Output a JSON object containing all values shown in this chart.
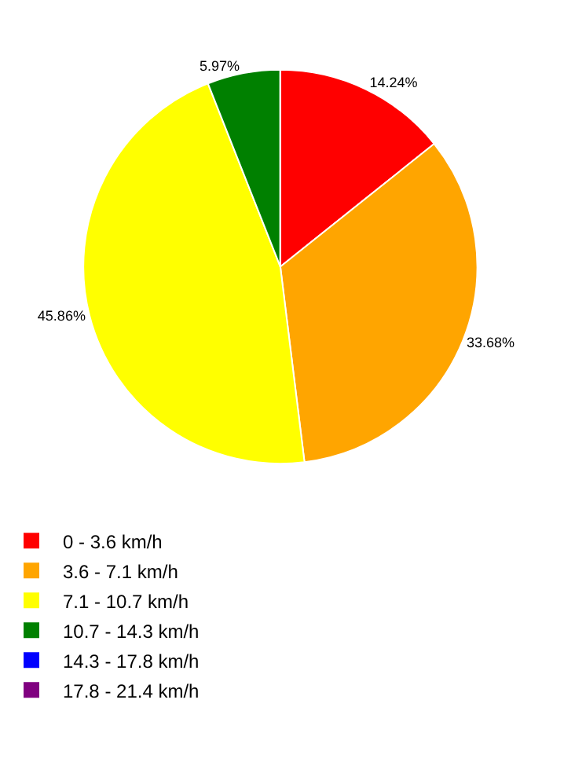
{
  "chart_data": {
    "type": "pie",
    "categories": [
      "0 - 3.6 km/h",
      "3.6 - 7.1 km/h",
      "7.1 - 10.7 km/h",
      "10.7 - 14.3 km/h",
      "14.3 - 17.8 km/h",
      "17.8 - 21.4 km/h"
    ],
    "values": [
      14.24,
      33.68,
      45.86,
      5.97,
      null,
      null
    ],
    "colors": [
      "#ff0000",
      "#ffa500",
      "#ffff00",
      "#008000",
      "#0000ff",
      "#800080"
    ],
    "value_labels": [
      "14.24%",
      "33.68%",
      "45.86%",
      "5.97%",
      null,
      null
    ],
    "legend": "bottom left"
  }
}
